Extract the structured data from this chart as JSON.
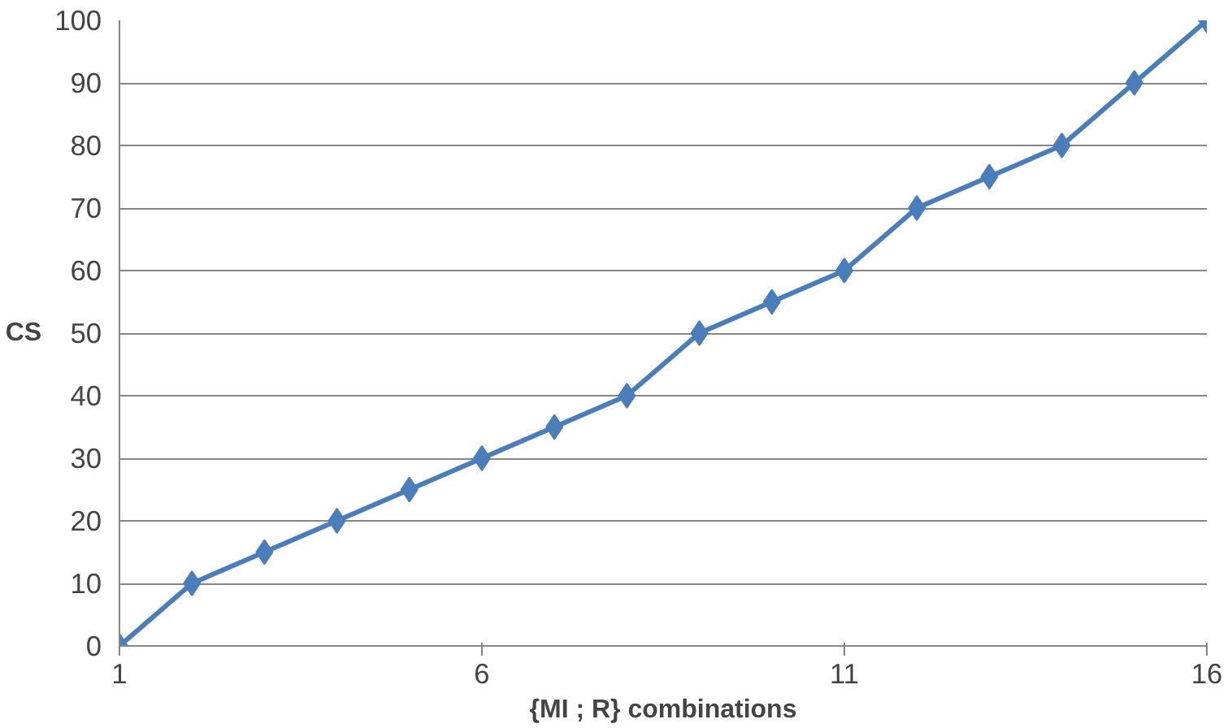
{
  "chart_data": {
    "type": "line",
    "xlabel": "{MI ; R} combinations",
    "ylabel": "CS",
    "x": [
      1,
      2,
      3,
      4,
      5,
      6,
      7,
      8,
      9,
      10,
      11,
      12,
      13,
      14,
      15,
      16
    ],
    "series": [
      {
        "color": "#4a7ebb",
        "values": [
          0,
          10,
          15,
          20,
          25,
          30,
          35,
          40,
          50,
          55,
          60,
          70,
          75,
          80,
          90,
          100
        ]
      }
    ],
    "xlim": [
      1,
      16
    ],
    "xticks": [
      1,
      6,
      11,
      16
    ],
    "ylim": [
      0,
      100
    ],
    "yticks": [
      0,
      10,
      20,
      30,
      40,
      50,
      60,
      70,
      80,
      90,
      100
    ],
    "grid": "y",
    "marker": "diamond",
    "line_style": "solid"
  }
}
